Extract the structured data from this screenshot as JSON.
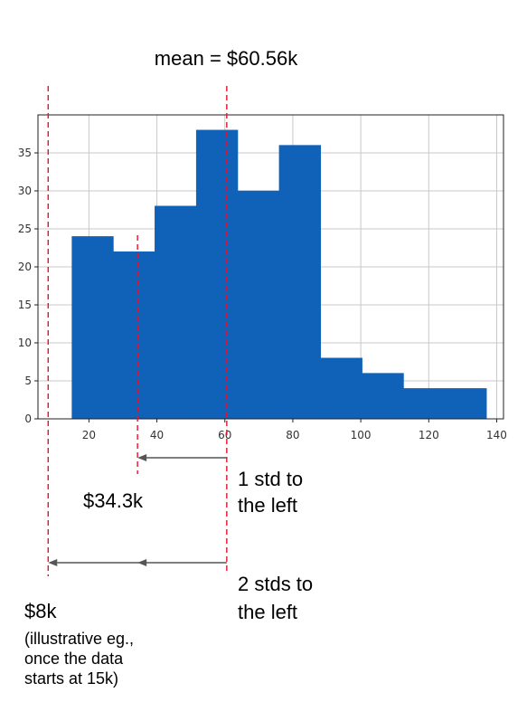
{
  "chart_data": {
    "type": "bar",
    "bins": [
      {
        "start": 15.0,
        "end": 27.2,
        "count": 24
      },
      {
        "start": 27.2,
        "end": 39.4,
        "count": 22
      },
      {
        "start": 39.4,
        "end": 51.6,
        "count": 28
      },
      {
        "start": 51.6,
        "end": 63.8,
        "count": 38
      },
      {
        "start": 63.8,
        "end": 76.0,
        "count": 30
      },
      {
        "start": 76.0,
        "end": 88.2,
        "count": 36
      },
      {
        "start": 88.2,
        "end": 100.4,
        "count": 8
      },
      {
        "start": 100.4,
        "end": 112.6,
        "count": 6
      },
      {
        "start": 112.6,
        "end": 137.0,
        "count": 4
      }
    ],
    "xlim": [
      5,
      142
    ],
    "ylim": [
      0,
      40
    ],
    "xticks": [
      20,
      40,
      60,
      80,
      100,
      120,
      140
    ],
    "yticks": [
      0,
      5,
      10,
      15,
      20,
      25,
      30,
      35
    ],
    "grid": true,
    "bar_color": "#0f62b8",
    "reference_lines": [
      {
        "x": 60.56,
        "color": "#e8102a",
        "style": "dashed"
      },
      {
        "x": 34.3,
        "color": "#e8102a",
        "style": "dashed"
      },
      {
        "x": 8,
        "color": "#e8102a",
        "style": "dashed"
      }
    ],
    "annotations": {
      "mean": "mean = $60.56k",
      "one_std_value": "$34.3k",
      "one_std_label": [
        "1 std to",
        "the left"
      ],
      "two_std_label": [
        "2 stds to",
        "the left"
      ],
      "two_std_value": "$8k",
      "note": [
        "(illustrative eg.,",
        "once the data",
        "starts at 15k)"
      ]
    },
    "arrows": [
      {
        "from": 60.56,
        "to": 34.3
      },
      {
        "from": 60.56,
        "to": 8
      }
    ]
  }
}
